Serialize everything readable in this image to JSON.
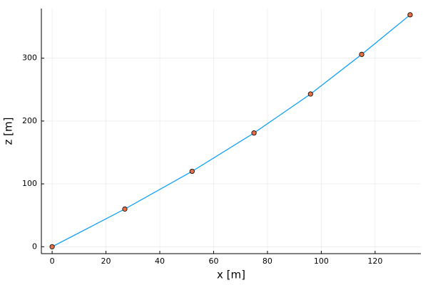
{
  "chart_data": {
    "type": "line",
    "x_label": "x [m]",
    "y_label": "z [m]",
    "x": [
      0,
      27,
      52,
      75,
      96,
      115,
      133
    ],
    "series": [
      {
        "color": "#009af9",
        "marker_color": "#e26f46",
        "values": [
          0,
          60,
          120,
          181,
          243,
          306,
          369
        ]
      }
    ],
    "xlim": [
      -4,
      137
    ],
    "xticks": [
      0,
      20,
      40,
      60,
      80,
      100,
      120
    ],
    "ylim": [
      -11,
      379
    ],
    "yticks": [
      0,
      100,
      200,
      300
    ],
    "grid": true
  }
}
